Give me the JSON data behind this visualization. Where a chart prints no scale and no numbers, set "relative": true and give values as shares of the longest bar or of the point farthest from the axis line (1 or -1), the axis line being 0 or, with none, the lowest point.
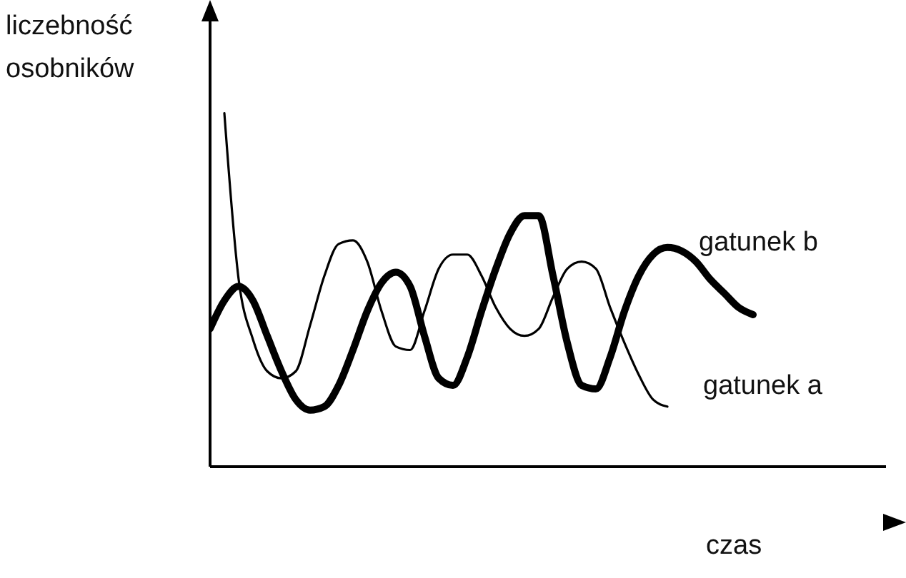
{
  "chart_data": {
    "type": "line",
    "relative": true,
    "ylabel": "liczebność osobników",
    "xlabel": "czas",
    "legend": false,
    "grid": false,
    "marker": "none",
    "categories": [
      null,
      null,
      null,
      null,
      null,
      null,
      null,
      null,
      null,
      null,
      null,
      null,
      null,
      null,
      null,
      null,
      null,
      null,
      null,
      null,
      null,
      null,
      null,
      null,
      null,
      null,
      null,
      null,
      null,
      null,
      null,
      null,
      null,
      null,
      null,
      null,
      null,
      null,
      null
    ],
    "series": [
      {
        "name": "gatunek b",
        "color": "#000000",
        "values": [
          0.39,
          0.47,
          0.51,
          0.47,
          0.37,
          0.27,
          0.19,
          0.16,
          0.17,
          0.23,
          0.33,
          0.44,
          0.52,
          0.55,
          0.51,
          0.37,
          0.25,
          0.23,
          0.31,
          0.44,
          0.56,
          0.66,
          0.71,
          0.71,
          0.54,
          0.35,
          0.23,
          0.22,
          0.31,
          0.44,
          0.54,
          0.6,
          0.62,
          0.61,
          0.58,
          0.53,
          0.49,
          0.45,
          0.43
        ]
      },
      {
        "name": "gatunek a",
        "color": "#000000",
        "values": [
          null,
          1,
          0.53,
          0.36,
          0.27,
          0.25,
          0.27,
          0.4,
          0.54,
          0.63,
          0.64,
          0.58,
          0.44,
          0.34,
          0.33,
          0.44,
          0.56,
          0.6,
          0.6,
          0.54,
          0.45,
          0.39,
          0.37,
          0.39,
          0.48,
          0.56,
          0.58,
          0.56,
          0.45,
          0.35,
          0.26,
          0.19,
          0.17,
          null,
          null,
          null,
          null,
          null,
          null
        ]
      }
    ]
  }
}
